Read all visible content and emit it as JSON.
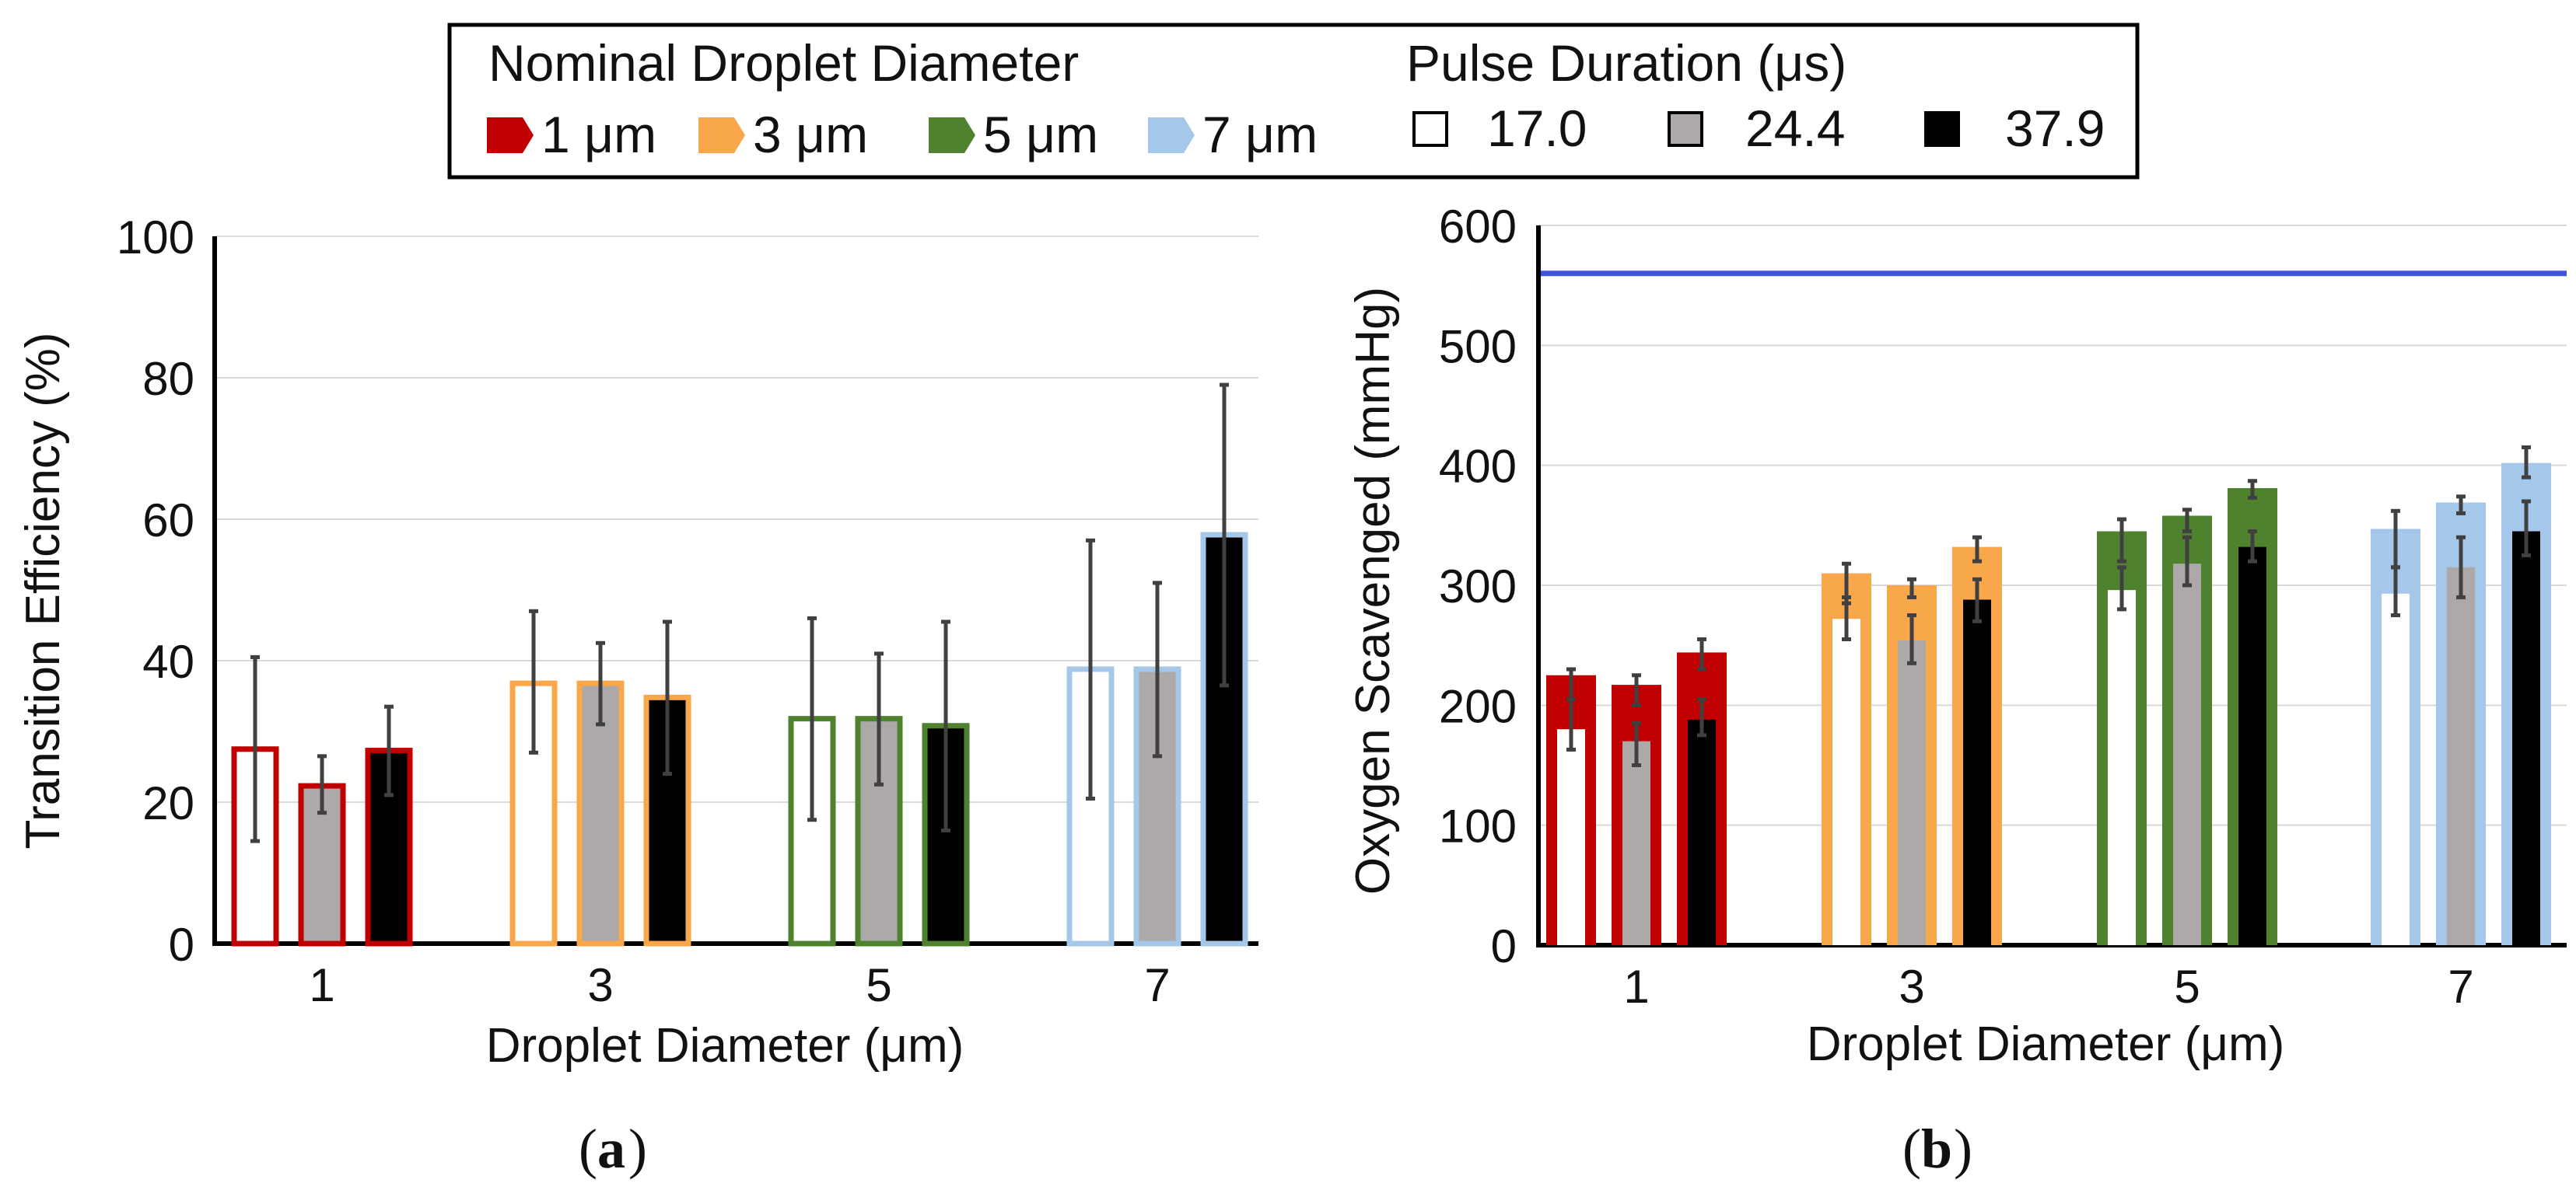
{
  "legend": {
    "diameter_title": "Nominal Droplet Diameter",
    "pulse_title": "Pulse Duration (μs)",
    "diameters": [
      {
        "label": "1 μm",
        "color": "#C00000"
      },
      {
        "label": "3 μm",
        "color": "#F9A74B"
      },
      {
        "label": "5 μm",
        "color": "#4F822E"
      },
      {
        "label": "7 μm",
        "color": "#A5C8EA"
      }
    ],
    "pulses": [
      {
        "label": "17.0",
        "fill": "#FFFFFF"
      },
      {
        "label": "24.4",
        "fill": "#ACA9A8"
      },
      {
        "label": "37.9",
        "fill": "#000000"
      }
    ]
  },
  "captions": {
    "a": "a",
    "b": "b"
  },
  "chart_data": [
    {
      "type": "bar",
      "panel": "a",
      "title": "",
      "xlabel": "Droplet Diameter (μm)",
      "ylabel": "Transition Efficiency (%)",
      "ylim": [
        0,
        100
      ],
      "yticks": [
        0,
        20,
        40,
        60,
        80,
        100
      ],
      "grid": true,
      "categories": [
        "1",
        "3",
        "5",
        "7"
      ],
      "category_colors": [
        "#C00000",
        "#F9A74B",
        "#4F822E",
        "#A5C8EA"
      ],
      "series": [
        {
          "name": "17.0",
          "values": [
            27.5,
            36.8,
            31.8,
            38.8
          ],
          "err_low": [
            14.5,
            27,
            17.5,
            20.5
          ],
          "err_high": [
            40.5,
            47,
            46,
            57
          ]
        },
        {
          "name": "24.4",
          "values": [
            22.3,
            36.8,
            31.8,
            38.8
          ],
          "err_low": [
            18.5,
            31,
            22.5,
            26.5
          ],
          "err_high": [
            26.5,
            42.5,
            41,
            51
          ]
        },
        {
          "name": "37.9",
          "values": [
            27.3,
            34.8,
            30.8,
            57.8
          ],
          "err_low": [
            21,
            24,
            16,
            36.5
          ],
          "err_high": [
            33.5,
            45.5,
            45.5,
            79
          ]
        }
      ]
    },
    {
      "type": "bar",
      "panel": "b",
      "title": "",
      "xlabel": "Droplet Diameter (μm)",
      "ylabel": "Oxygen Scavenged (mmHg)",
      "ylim": [
        0,
        600
      ],
      "yticks": [
        0,
        100,
        200,
        300,
        400,
        500,
        600
      ],
      "grid": true,
      "reference_line": 560,
      "reference_color": "#4051E0",
      "categories": [
        "1",
        "3",
        "5",
        "7"
      ],
      "category_colors": [
        "#C00000",
        "#F9A74B",
        "#4F822E",
        "#A5C8EA"
      ],
      "series": [
        {
          "name": "17.0",
          "outer": [
            225,
            310,
            345,
            347
          ],
          "outer_err_low": [
            205,
            285,
            320,
            315
          ],
          "outer_err_high": [
            230,
            318,
            355,
            362
          ],
          "inner": [
            180,
            272,
            296,
            293
          ],
          "inner_err_low": [
            163,
            255,
            280,
            275
          ],
          "inner_err_high": [
            205,
            290,
            315,
            315
          ]
        },
        {
          "name": "24.4",
          "outer": [
            217,
            300,
            358,
            369
          ],
          "outer_err_low": [
            200,
            290,
            345,
            360
          ],
          "outer_err_high": [
            225,
            305,
            363,
            374
          ],
          "inner": [
            170,
            254,
            318,
            315
          ],
          "inner_err_low": [
            150,
            235,
            300,
            290
          ],
          "inner_err_high": [
            185,
            275,
            340,
            340
          ]
        },
        {
          "name": "37.9",
          "outer": [
            244,
            332,
            381,
            402
          ],
          "outer_err_low": [
            230,
            320,
            373,
            390
          ],
          "outer_err_high": [
            255,
            340,
            387,
            415
          ]
        },
        {
          "name": "37.9 inner",
          "inner": [
            188,
            288,
            332,
            345
          ],
          "inner_err_low": [
            175,
            270,
            320,
            325
          ],
          "inner_err_high": [
            205,
            305,
            345,
            370
          ]
        }
      ]
    }
  ]
}
